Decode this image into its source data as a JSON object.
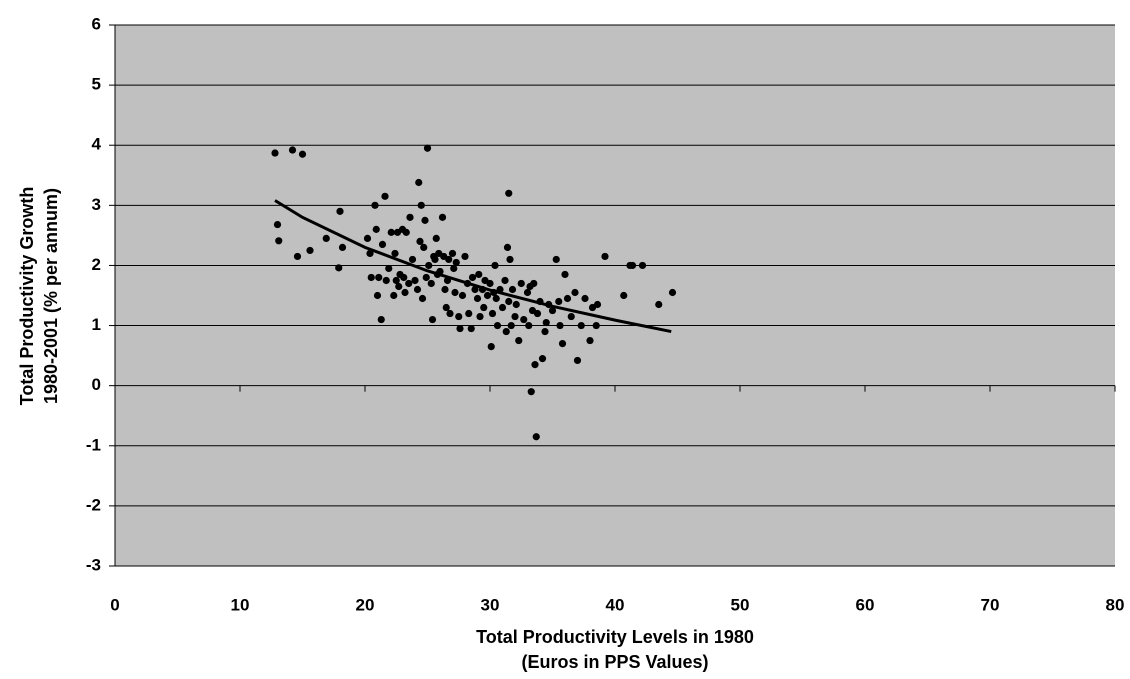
{
  "chart_data": {
    "type": "scatter",
    "xlabel": [
      "Total Productivity Levels in 1980",
      "(Euros in PPS Values)"
    ],
    "ylabel": [
      "Total Productivity Growth",
      "1980-2001 (% per annum)"
    ],
    "x": [
      12.8,
      13.0,
      13.1,
      14.2,
      14.6,
      15.0,
      15.6,
      16.9,
      17.9,
      18.0,
      18.2,
      20.2,
      20.4,
      20.5,
      20.8,
      20.9,
      21.0,
      21.1,
      21.3,
      21.4,
      21.6,
      21.7,
      21.9,
      22.1,
      22.3,
      22.4,
      22.5,
      22.6,
      22.7,
      22.8,
      23.0,
      23.1,
      23.2,
      23.3,
      23.5,
      23.6,
      23.8,
      24.0,
      24.2,
      24.3,
      24.4,
      24.5,
      24.6,
      24.7,
      24.8,
      24.9,
      25.0,
      25.1,
      25.3,
      25.4,
      25.5,
      25.6,
      25.7,
      25.8,
      25.9,
      26.0,
      26.2,
      26.3,
      26.4,
      26.5,
      26.6,
      26.7,
      26.8,
      27.0,
      27.1,
      27.2,
      27.3,
      27.5,
      27.6,
      27.8,
      28.0,
      28.2,
      28.3,
      28.5,
      28.6,
      28.8,
      29.0,
      29.1,
      29.2,
      29.4,
      29.5,
      29.6,
      29.8,
      30.0,
      30.1,
      30.2,
      30.3,
      30.4,
      30.5,
      30.6,
      30.8,
      31.0,
      31.2,
      31.3,
      31.4,
      31.5,
      31.5,
      31.6,
      31.7,
      31.8,
      32.0,
      32.1,
      32.3,
      32.5,
      32.7,
      33.0,
      33.1,
      33.2,
      33.3,
      33.4,
      33.5,
      33.6,
      33.7,
      33.8,
      34.0,
      34.2,
      34.4,
      34.5,
      34.7,
      35.0,
      35.3,
      35.5,
      35.6,
      35.8,
      36.0,
      36.2,
      36.5,
      36.8,
      37.0,
      37.3,
      37.6,
      38.0,
      38.2,
      38.5,
      38.6,
      39.2,
      40.7,
      41.2,
      41.4,
      42.2,
      43.5,
      44.6
    ],
    "values": [
      3.87,
      2.68,
      2.41,
      3.92,
      2.15,
      3.85,
      2.25,
      2.45,
      1.96,
      2.9,
      2.3,
      2.45,
      2.2,
      1.8,
      3.0,
      2.6,
      1.5,
      1.8,
      1.1,
      2.35,
      3.15,
      1.75,
      1.95,
      2.55,
      1.5,
      2.2,
      1.75,
      2.55,
      1.65,
      1.85,
      2.6,
      1.8,
      1.55,
      2.55,
      1.7,
      2.8,
      2.1,
      1.75,
      1.6,
      3.38,
      2.4,
      3.0,
      1.45,
      2.3,
      2.75,
      1.8,
      3.95,
      2.0,
      1.7,
      1.1,
      2.15,
      2.1,
      2.45,
      1.85,
      2.2,
      1.9,
      2.8,
      2.15,
      1.6,
      1.3,
      1.75,
      2.1,
      1.2,
      2.2,
      1.95,
      1.55,
      2.05,
      1.15,
      0.95,
      1.5,
      2.15,
      1.7,
      1.2,
      0.95,
      1.8,
      1.6,
      1.45,
      1.85,
      1.15,
      1.6,
      1.3,
      1.75,
      1.5,
      1.7,
      0.65,
      1.2,
      1.55,
      2.0,
      1.45,
      1.0,
      1.6,
      1.3,
      1.75,
      0.9,
      2.3,
      3.2,
      1.4,
      2.1,
      1.0,
      1.6,
      1.15,
      1.35,
      0.75,
      1.7,
      1.1,
      1.55,
      1.0,
      1.65,
      -0.1,
      1.25,
      1.7,
      0.35,
      -0.85,
      1.2,
      1.4,
      0.45,
      0.9,
      1.05,
      1.35,
      1.25,
      2.1,
      1.4,
      1.0,
      0.7,
      1.85,
      1.45,
      1.15,
      1.55,
      0.42,
      1.0,
      1.45,
      0.75,
      1.3,
      1.0,
      1.35,
      2.15,
      1.5,
      2.0,
      2.0,
      2.0,
      1.35,
      1.55
    ],
    "color": "#000000",
    "trendline": {
      "x": [
        12.8,
        15,
        20,
        25,
        30,
        35,
        40,
        44.5
      ],
      "y": [
        3.08,
        2.8,
        2.3,
        1.91,
        1.59,
        1.32,
        1.09,
        0.9
      ],
      "color": "#000000"
    },
    "xlim": [
      0,
      80
    ],
    "xticks": [
      0,
      10,
      20,
      30,
      40,
      50,
      60,
      70,
      80
    ],
    "ylim": [
      -3,
      6
    ],
    "yticks": [
      -3,
      -2,
      -1,
      0,
      1,
      2,
      3,
      4,
      5,
      6
    ],
    "grid": true,
    "background": "#c0c0c0"
  }
}
